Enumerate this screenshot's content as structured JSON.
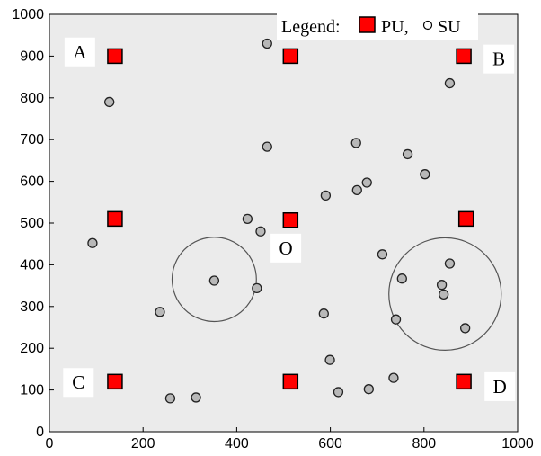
{
  "chart_data": {
    "type": "scatter",
    "title": "",
    "xlabel": "",
    "ylabel": "",
    "xlim": [
      0,
      1000
    ],
    "ylim": [
      0,
      1000
    ],
    "xticks": [
      "0",
      "200",
      "400",
      "600",
      "800",
      "1000"
    ],
    "xtick_values": [
      0,
      200,
      400,
      600,
      800,
      1000
    ],
    "yticks": [
      "0",
      "100",
      "200",
      "300",
      "400",
      "500",
      "600",
      "700",
      "800",
      "900",
      "1000"
    ],
    "ytick_values": [
      0,
      100,
      200,
      300,
      400,
      500,
      600,
      700,
      800,
      900,
      1000
    ],
    "grid": false,
    "background_color": "#ebebeb",
    "legend": {
      "placement": "top-right",
      "prefix": "Legend:",
      "pu_label": "PU,",
      "su_label": "SU"
    },
    "series": [
      {
        "name": "PU",
        "marker": "square",
        "color": "#ff0000",
        "points": [
          {
            "x": 140,
            "y": 900
          },
          {
            "x": 515,
            "y": 900
          },
          {
            "x": 885,
            "y": 900
          },
          {
            "x": 140,
            "y": 510
          },
          {
            "x": 515,
            "y": 507
          },
          {
            "x": 890,
            "y": 510
          },
          {
            "x": 140,
            "y": 120
          },
          {
            "x": 515,
            "y": 120
          },
          {
            "x": 885,
            "y": 120
          }
        ]
      },
      {
        "name": "SU",
        "marker": "circle",
        "color": "#b8b8b8",
        "points": [
          {
            "x": 465,
            "y": 930
          },
          {
            "x": 128,
            "y": 790
          },
          {
            "x": 855,
            "y": 835
          },
          {
            "x": 465,
            "y": 683
          },
          {
            "x": 655,
            "y": 692
          },
          {
            "x": 765,
            "y": 665
          },
          {
            "x": 802,
            "y": 617
          },
          {
            "x": 678,
            "y": 597
          },
          {
            "x": 657,
            "y": 579
          },
          {
            "x": 590,
            "y": 566
          },
          {
            "x": 423,
            "y": 510
          },
          {
            "x": 451,
            "y": 480
          },
          {
            "x": 92,
            "y": 452
          },
          {
            "x": 711,
            "y": 425
          },
          {
            "x": 855,
            "y": 403
          },
          {
            "x": 753,
            "y": 367
          },
          {
            "x": 838,
            "y": 352
          },
          {
            "x": 842,
            "y": 329
          },
          {
            "x": 352,
            "y": 362
          },
          {
            "x": 443,
            "y": 344
          },
          {
            "x": 236,
            "y": 287
          },
          {
            "x": 586,
            "y": 283
          },
          {
            "x": 740,
            "y": 269
          },
          {
            "x": 888,
            "y": 248
          },
          {
            "x": 599,
            "y": 172
          },
          {
            "x": 735,
            "y": 129
          },
          {
            "x": 682,
            "y": 102
          },
          {
            "x": 617,
            "y": 95
          },
          {
            "x": 258,
            "y": 80
          },
          {
            "x": 313,
            "y": 82
          }
        ]
      }
    ],
    "range_circles": [
      {
        "cx": 352,
        "cy": 365,
        "r": 90
      },
      {
        "cx": 845,
        "cy": 330,
        "r": 120
      }
    ],
    "annotations": [
      {
        "text": "A",
        "x": 65,
        "y": 910
      },
      {
        "text": "B",
        "x": 960,
        "y": 893
      },
      {
        "text": "C",
        "x": 62,
        "y": 118
      },
      {
        "text": "D",
        "x": 962,
        "y": 108
      },
      {
        "text": "O",
        "x": 505,
        "y": 440
      }
    ]
  }
}
